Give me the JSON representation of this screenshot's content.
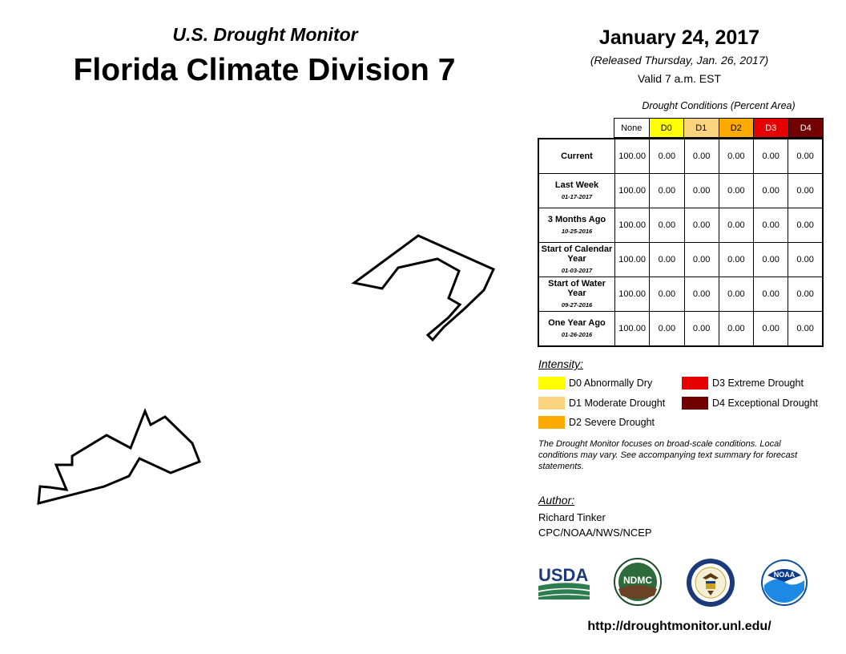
{
  "header": {
    "subtitle": "U.S. Drought Monitor",
    "title": "Florida Climate Division 7",
    "date": "January 24, 2017",
    "released": "(Released Thursday, Jan. 26, 2017)",
    "valid": "Valid 7 a.m. EST"
  },
  "table": {
    "caption": "Drought Conditions (Percent Area)",
    "columns": [
      "None",
      "D0",
      "D1",
      "D2",
      "D3",
      "D4"
    ],
    "column_colors": [
      "#ffffff",
      "#ffff00",
      "#fcd37f",
      "#ffaa00",
      "#e60000",
      "#730000"
    ],
    "column_text_colors": [
      "#000000",
      "#000000",
      "#000000",
      "#000000",
      "#ffffff",
      "#ffffff"
    ],
    "rows": [
      {
        "label": "Current",
        "date": "",
        "values": [
          "100.00",
          "0.00",
          "0.00",
          "0.00",
          "0.00",
          "0.00"
        ]
      },
      {
        "label": "Last Week",
        "date": "01-17-2017",
        "values": [
          "100.00",
          "0.00",
          "0.00",
          "0.00",
          "0.00",
          "0.00"
        ]
      },
      {
        "label": "3 Months Ago",
        "date": "10-25-2016",
        "values": [
          "100.00",
          "0.00",
          "0.00",
          "0.00",
          "0.00",
          "0.00"
        ]
      },
      {
        "label": "Start of Calendar Year",
        "date": "01-03-2017",
        "values": [
          "100.00",
          "0.00",
          "0.00",
          "0.00",
          "0.00",
          "0.00"
        ]
      },
      {
        "label": "Start of Water Year",
        "date": "09-27-2016",
        "values": [
          "100.00",
          "0.00",
          "0.00",
          "0.00",
          "0.00",
          "0.00"
        ]
      },
      {
        "label": "One Year Ago",
        "date": "01-26-2016",
        "values": [
          "100.00",
          "0.00",
          "0.00",
          "0.00",
          "0.00",
          "0.00"
        ]
      }
    ]
  },
  "legend": {
    "title": "Intensity:",
    "items": [
      {
        "label": "D0 Abnormally Dry",
        "color": "#ffff00"
      },
      {
        "label": "D1 Moderate Drought",
        "color": "#fcd37f"
      },
      {
        "label": "D2 Severe Drought",
        "color": "#ffaa00"
      },
      {
        "label": "D3 Extreme Drought",
        "color": "#e60000"
      },
      {
        "label": "D4 Exceptional Drought",
        "color": "#730000"
      }
    ]
  },
  "note": "The Drought Monitor focuses on broad-scale conditions. Local conditions may vary. See accompanying text summary for forecast statements.",
  "author": {
    "label": "Author:",
    "name": "Richard Tinker",
    "org": "CPC/NOAA/NWS/NCEP"
  },
  "logos": {
    "usda": "USDA",
    "ndmc": "NDMC",
    "noaa": "NOAA"
  },
  "url": "http://droughtmonitor.unl.edu/"
}
